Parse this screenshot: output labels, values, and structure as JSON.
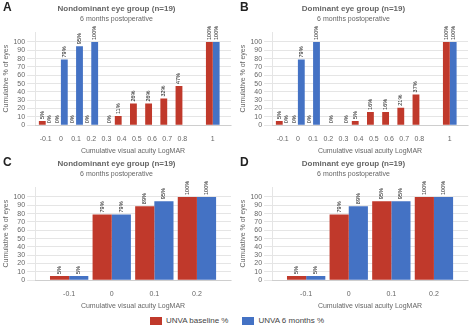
{
  "chart_data": [
    {
      "type": "bar",
      "title": "Nondominant eye group (n=19)",
      "subtitle": "6 months postoperative",
      "annotations": [
        "A"
      ],
      "xlabel": "Cumulative visual acuity LogMAR",
      "ylabel": "Cumulative % of eyes",
      "x": [
        -0.1,
        0,
        0.1,
        0.2,
        0.3,
        0.4,
        0.5,
        0.6,
        0.7,
        0.8,
        1
      ],
      "series": [
        {
          "name": "UNVA baseline %",
          "color": "#C0392B",
          "values": [
            5,
            0,
            0,
            0,
            0,
            11,
            26,
            26,
            32,
            47,
            100
          ],
          "value_labels": [
            "5%",
            "0%",
            "0%",
            "0%",
            null,
            "11%",
            "26%",
            "26%",
            "32%",
            "47%",
            "100%"
          ]
        },
        {
          "name": "UNVA 6 months %",
          "color": "#4472C4",
          "values": [
            0,
            79,
            95,
            100,
            0,
            0,
            0,
            0,
            0,
            0,
            100
          ],
          "value_labels": [
            "0%",
            "79%",
            "95%",
            "100%",
            "0%",
            null,
            null,
            null,
            null,
            null,
            "100%"
          ]
        }
      ],
      "xlim": [
        -0.17,
        1.12
      ],
      "xticks": [
        -0.1,
        0,
        0.1,
        0.2,
        0.3,
        0.4,
        0.5,
        0.6,
        0.7,
        0.8,
        1
      ],
      "ylim": [
        0,
        112
      ],
      "yticks": [
        0,
        10,
        20,
        30,
        40,
        50,
        60,
        70,
        80,
        90,
        100
      ],
      "grid": true,
      "data_labels": true,
      "legend": "bottom"
    },
    {
      "type": "bar",
      "title": "Dominant eye group (n=19)",
      "subtitle": "6 months postoperative",
      "annotations": [
        "B"
      ],
      "xlabel": "Cumulative visual acuity LogMAR",
      "ylabel": "Cumulative % of eyes",
      "x": [
        -0.1,
        0,
        0.1,
        0.2,
        0.3,
        0.4,
        0.5,
        0.6,
        0.7,
        0.8,
        1
      ],
      "series": [
        {
          "name": "UNVA baseline %",
          "color": "#C0392B",
          "values": [
            5,
            0,
            0,
            0,
            0,
            5,
            16,
            16,
            21,
            37,
            100
          ],
          "value_labels": [
            "5%",
            "0%",
            "0%",
            null,
            null,
            "5%",
            "16%",
            "16%",
            "21%",
            "37%",
            "100%"
          ]
        },
        {
          "name": "UNVA 6 months %",
          "color": "#4472C4",
          "values": [
            0,
            79,
            100,
            0,
            0,
            0,
            0,
            0,
            0,
            0,
            100
          ],
          "value_labels": [
            "0%",
            "79%",
            "100%",
            "0%",
            "0%",
            null,
            null,
            null,
            null,
            null,
            "100%"
          ]
        }
      ],
      "xlim": [
        -0.17,
        1.12
      ],
      "xticks": [
        -0.1,
        0,
        0.1,
        0.2,
        0.3,
        0.4,
        0.5,
        0.6,
        0.7,
        0.8,
        1
      ],
      "ylim": [
        0,
        112
      ],
      "yticks": [
        0,
        10,
        20,
        30,
        40,
        50,
        60,
        70,
        80,
        90,
        100
      ],
      "grid": true,
      "data_labels": true,
      "legend": "bottom"
    },
    {
      "type": "bar",
      "title": "Nondominant eye group (n=19)",
      "subtitle": "6 months postoperative",
      "annotations": [
        "C"
      ],
      "xlabel": "Cumulative visual acuity LogMAR",
      "ylabel": "Cumulative % of eyes",
      "x": [
        -0.1,
        0,
        0.1,
        0.2
      ],
      "series": [
        {
          "name": "UNVA baseline %",
          "color": "#C0392B",
          "values": [
            5,
            79,
            89,
            100
          ],
          "value_labels": [
            "5%",
            "79%",
            "89%",
            "100%"
          ]
        },
        {
          "name": "UNVA 6 months %",
          "color": "#4472C4",
          "values": [
            5,
            79,
            95,
            100
          ],
          "value_labels": [
            "5%",
            "79%",
            "95%",
            "100%"
          ]
        }
      ],
      "xlim": [
        -0.18,
        0.28
      ],
      "xticks": [
        -0.1,
        0,
        0.1,
        0.2
      ],
      "ylim": [
        0,
        112
      ],
      "yticks": [
        0,
        10,
        20,
        30,
        40,
        50,
        60,
        70,
        80,
        90,
        100
      ],
      "grid": true,
      "data_labels": true,
      "legend": "bottom"
    },
    {
      "type": "bar",
      "title": "Dominant eye group (n=19)",
      "subtitle": "6 months postoperative",
      "annotations": [
        "D"
      ],
      "xlabel": "Cumulative visual acuity LogMAR",
      "ylabel": "Cumulative % of eyes",
      "x": [
        -0.1,
        0,
        0.1,
        0.2
      ],
      "series": [
        {
          "name": "UNVA baseline %",
          "color": "#C0392B",
          "values": [
            5,
            79,
            95,
            100
          ],
          "value_labels": [
            "5%",
            "79%",
            "95%",
            "100%"
          ]
        },
        {
          "name": "UNVA 6 months %",
          "color": "#4472C4",
          "values": [
            5,
            89,
            95,
            100
          ],
          "value_labels": [
            "5%",
            "89%",
            "95%",
            "100%"
          ]
        }
      ],
      "xlim": [
        -0.18,
        0.28
      ],
      "xticks": [
        -0.1,
        0,
        0.1,
        0.2
      ],
      "ylim": [
        0,
        112
      ],
      "yticks": [
        0,
        10,
        20,
        30,
        40,
        50,
        60,
        70,
        80,
        90,
        100
      ],
      "grid": true,
      "data_labels": true,
      "legend": "bottom"
    }
  ]
}
